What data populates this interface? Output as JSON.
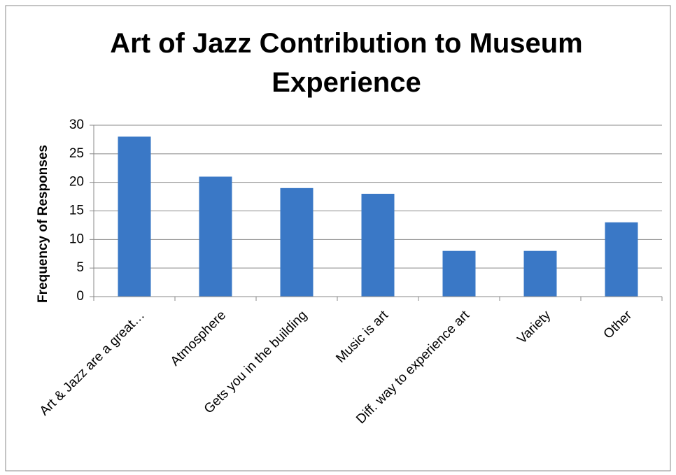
{
  "chart_data": {
    "type": "bar",
    "title": "Art of Jazz Contribution to Museum Experience",
    "ylabel": "Frequency of Responses",
    "categories": [
      "Art & Jazz are a great…",
      "Atmosphere",
      "Gets you in the building",
      "Music is art",
      "Diff. way to experience art",
      "Variety",
      "Other"
    ],
    "values": [
      28,
      21,
      19,
      18,
      8,
      8,
      13
    ],
    "color": "#3a78c6",
    "ylim": [
      0,
      30
    ],
    "yticks": [
      0,
      5,
      10,
      15,
      20,
      25,
      30
    ],
    "grid": true
  }
}
